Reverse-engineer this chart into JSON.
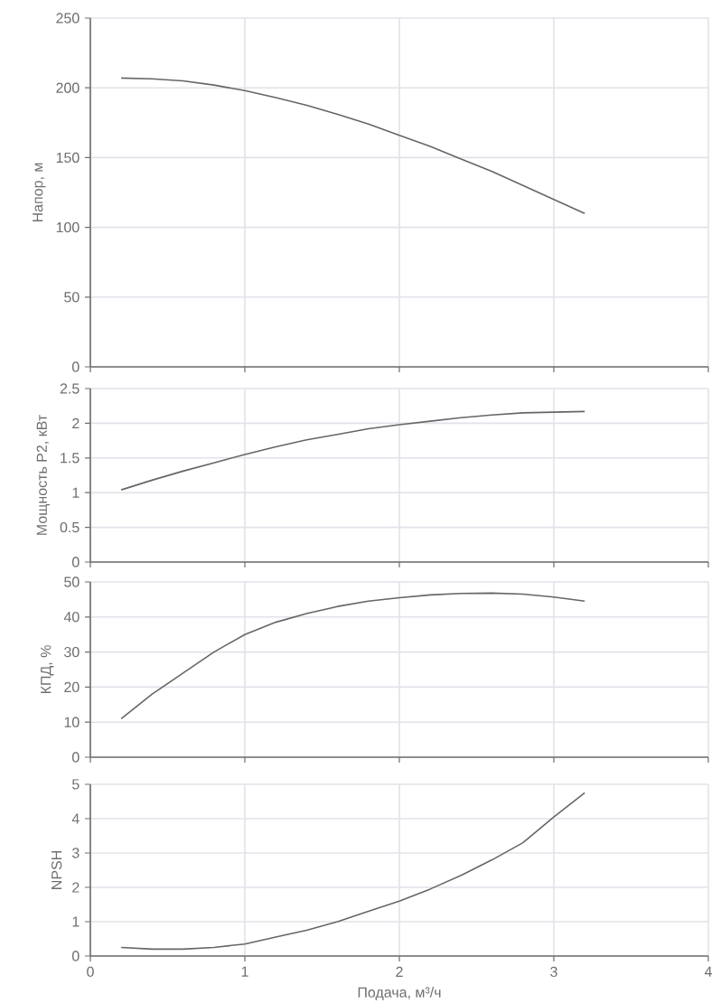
{
  "chart_data": [
    {
      "type": "line",
      "x": [
        0.2,
        0.4,
        0.6,
        0.8,
        1.0,
        1.2,
        1.4,
        1.6,
        1.8,
        2.0,
        2.2,
        2.4,
        2.6,
        2.8,
        3.0,
        3.2
      ],
      "series": [
        {
          "color": "#666666",
          "values": [
            207,
            206.5,
            205,
            202,
            198,
            193,
            187.5,
            181,
            174,
            166,
            158,
            149,
            140,
            130,
            120,
            110
          ]
        }
      ],
      "xlim": [
        0,
        4
      ],
      "xticks": [
        0,
        1,
        2,
        3,
        4
      ],
      "ylim": [
        0,
        250
      ],
      "yticks": [
        0,
        50,
        100,
        150,
        200,
        250
      ],
      "ylabel": "Напор, м",
      "grid": true,
      "tick_labels": "y"
    },
    {
      "type": "line",
      "x": [
        0.2,
        0.4,
        0.6,
        0.8,
        1.0,
        1.2,
        1.4,
        1.6,
        1.8,
        2.0,
        2.2,
        2.4,
        2.6,
        2.8,
        3.0,
        3.2
      ],
      "series": [
        {
          "color": "#666666",
          "values": [
            1.04,
            1.18,
            1.31,
            1.43,
            1.55,
            1.66,
            1.76,
            1.84,
            1.92,
            1.98,
            2.03,
            2.08,
            2.12,
            2.15,
            2.16,
            2.17
          ]
        }
      ],
      "xlim": [
        0,
        4
      ],
      "xticks": [
        0,
        1,
        2,
        3,
        4
      ],
      "ylim": [
        0,
        2.5
      ],
      "yticks": [
        0,
        0.5,
        1,
        1.5,
        2,
        2.5
      ],
      "ylabel": "Мощность Р2, кВт",
      "grid": true,
      "tick_labels": "y"
    },
    {
      "type": "line",
      "x": [
        0.2,
        0.4,
        0.6,
        0.8,
        1.0,
        1.2,
        1.4,
        1.6,
        1.8,
        2.0,
        2.2,
        2.4,
        2.6,
        2.8,
        3.0,
        3.2
      ],
      "series": [
        {
          "color": "#666666",
          "values": [
            11,
            18,
            24,
            30,
            35,
            38.5,
            41,
            43,
            44.5,
            45.5,
            46.3,
            46.7,
            46.8,
            46.5,
            45.7,
            44.5
          ]
        }
      ],
      "xlim": [
        0,
        4
      ],
      "xticks": [
        0,
        1,
        2,
        3,
        4
      ],
      "ylim": [
        0,
        50
      ],
      "yticks": [
        0,
        10,
        20,
        30,
        40,
        50
      ],
      "ylabel": "КПД, %",
      "grid": true,
      "tick_labels": "y"
    },
    {
      "type": "line",
      "x": [
        0.2,
        0.4,
        0.6,
        0.8,
        1.0,
        1.2,
        1.4,
        1.6,
        1.8,
        2.0,
        2.2,
        2.4,
        2.6,
        2.8,
        3.0,
        3.2
      ],
      "series": [
        {
          "color": "#666666",
          "values": [
            0.25,
            0.2,
            0.2,
            0.25,
            0.35,
            0.55,
            0.75,
            1.0,
            1.3,
            1.6,
            1.95,
            2.35,
            2.8,
            3.3,
            4.05,
            4.75
          ]
        }
      ],
      "xlim": [
        0,
        4
      ],
      "xticks": [
        0,
        1,
        2,
        3,
        4
      ],
      "ylim": [
        0,
        5
      ],
      "yticks": [
        0,
        1,
        2,
        3,
        4,
        5
      ],
      "ylabel": "NPSH",
      "xlabel": "Подача, м³/ч",
      "grid": true
    }
  ]
}
